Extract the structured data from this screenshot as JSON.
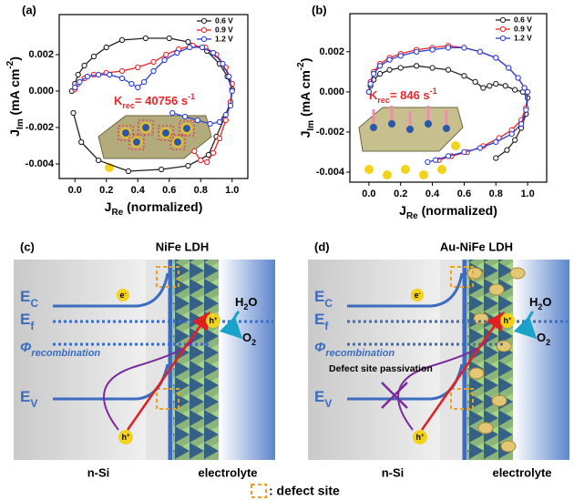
{
  "chart_data": [
    {
      "type": "line",
      "panel": "(a)",
      "xlabel": [
        "J",
        "Re",
        " (normalized)"
      ],
      "ylabel": [
        "J",
        "Im",
        " (mA cm",
        "-2",
        ")"
      ],
      "annotation": [
        "K",
        "rec",
        "= 40756 s",
        "-1"
      ],
      "xlim": [
        -0.1,
        1.1
      ],
      "ylim": [
        -0.0048,
        0.0042
      ],
      "xticks": [
        {
          "value": 0,
          "label": "0.0"
        },
        0.2,
        0.4,
        0.6,
        0.8,
        {
          "value": 1,
          "label": "1.0"
        }
      ],
      "yticks": [
        -0.004,
        -0.002,
        {
          "value": 0,
          "label": "0.000"
        },
        0.002
      ],
      "legend": "upper right",
      "series": [
        {
          "name": "0.6 V",
          "color": "#222222",
          "x": [
            -0.02,
            0.0,
            0.02,
            0.06,
            0.12,
            0.2,
            0.3,
            0.45,
            0.6,
            0.72,
            0.84,
            0.92,
            0.97,
            1.0,
            0.99,
            0.95,
            0.9,
            0.85,
            0.72,
            0.55,
            0.34,
            0.15,
            0.04,
            -0.01
          ],
          "values": [
            0.0,
            0.0004,
            0.0009,
            0.0014,
            0.0019,
            0.0024,
            0.0028,
            0.0029,
            0.0029,
            0.0027,
            0.0022,
            0.0015,
            0.0008,
            0.0001,
            -0.0006,
            -0.0015,
            -0.0025,
            -0.0035,
            -0.0041,
            -0.0043,
            -0.0044,
            -0.0038,
            -0.0028,
            -0.0012
          ]
        },
        {
          "name": "0.9 V",
          "color": "#e8262a",
          "x": [
            0.0,
            0.02,
            0.06,
            0.12,
            0.2,
            0.3,
            0.4,
            0.5,
            0.58,
            0.66,
            0.75,
            0.83,
            0.9,
            0.96,
            1.0,
            0.99,
            0.96,
            0.92,
            0.88,
            0.84,
            0.8,
            0.76
          ],
          "values": [
            0.0001,
            0.0004,
            0.0007,
            0.0009,
            0.001,
            0.0011,
            0.0013,
            0.0016,
            0.002,
            0.0023,
            0.0025,
            0.0024,
            0.002,
            0.0013,
            0.0004,
            -0.0006,
            -0.0016,
            -0.0026,
            -0.0034,
            -0.0039,
            -0.0038,
            -0.0033
          ]
        },
        {
          "name": "1.2 V",
          "color": "#2b3fd6",
          "x": [
            0.0,
            0.03,
            0.08,
            0.15,
            0.22,
            0.3,
            0.36,
            0.4,
            0.44,
            0.5,
            0.57,
            0.65,
            0.73,
            0.81,
            0.88,
            0.94,
            0.98,
            1.0,
            0.99,
            0.96,
            0.92,
            0.86,
            0.78,
            0.7,
            0.62
          ],
          "values": [
            0.0002,
            0.0005,
            0.0008,
            0.0009,
            0.0009,
            0.0007,
            0.0004,
            0.0002,
            0.0005,
            0.0011,
            0.0017,
            0.0021,
            0.0024,
            0.0024,
            0.0021,
            0.0015,
            0.0008,
            0.0,
            -0.0008,
            -0.0013,
            -0.0017,
            -0.0018,
            -0.0016,
            -0.0014,
            -0.0012
          ]
        }
      ]
    },
    {
      "type": "line",
      "panel": "(b)",
      "xlabel": [
        "J",
        "Re",
        " (normalized)"
      ],
      "ylabel": [
        "J",
        "Im",
        " (mA cm",
        "-2",
        ")"
      ],
      "annotation": [
        "K",
        "rec",
        "= 846 s",
        "-1"
      ],
      "xlim": [
        -0.12,
        1.12
      ],
      "ylim": [
        -0.0045,
        0.0039
      ],
      "xticks": [
        {
          "value": 0,
          "label": "0.0"
        },
        0.2,
        0.4,
        0.6,
        0.8,
        {
          "value": 1,
          "label": "1.0"
        }
      ],
      "yticks": [
        -0.004,
        -0.002,
        {
          "value": 0,
          "label": "0.000"
        },
        0.002
      ],
      "legend": "upper right",
      "series": [
        {
          "name": "0.6 V",
          "color": "#222222",
          "x": [
            0.0,
            0.01,
            0.03,
            0.07,
            0.13,
            0.2,
            0.3,
            0.4,
            0.5,
            0.6,
            0.67,
            0.72,
            0.76,
            0.8,
            0.86,
            0.92,
            0.97,
            1.0,
            0.99,
            0.96,
            0.92,
            0.87,
            0.8
          ],
          "values": [
            0.0,
            0.0003,
            0.0006,
            0.0009,
            0.0011,
            0.0012,
            0.0013,
            0.0012,
            0.0011,
            0.0008,
            0.0005,
            0.0002,
            0.0003,
            0.0004,
            0.0003,
            0.0001,
            0.0,
            -0.0003,
            -0.0011,
            -0.0018,
            -0.0024,
            -0.0029,
            -0.0033
          ]
        },
        {
          "name": "0.9 V",
          "color": "#e8262a",
          "x": [
            0.0,
            0.01,
            0.03,
            0.07,
            0.13,
            0.2,
            0.3,
            0.4,
            0.5,
            0.6,
            0.7,
            0.8,
            0.88,
            0.94,
            0.98,
            1.0,
            0.99,
            0.96,
            0.9,
            0.82,
            0.72,
            0.62,
            0.52,
            0.44
          ],
          "values": [
            0.0,
            0.0005,
            0.001,
            0.0014,
            0.0017,
            0.0019,
            0.0021,
            0.0022,
            0.0023,
            0.0022,
            0.002,
            0.0017,
            0.0012,
            0.0007,
            0.0002,
            0.0,
            -0.0008,
            -0.0014,
            -0.0019,
            -0.0023,
            -0.0027,
            -0.003,
            -0.0032,
            -0.0034
          ]
        },
        {
          "name": "1.2 V",
          "color": "#2b3fd6",
          "x": [
            0.0,
            0.01,
            0.03,
            0.07,
            0.13,
            0.2,
            0.3,
            0.4,
            0.5,
            0.6,
            0.7,
            0.8,
            0.88,
            0.94,
            0.98,
            1.0,
            0.99,
            0.96,
            0.9,
            0.8,
            0.7,
            0.6,
            0.5,
            0.42,
            0.37
          ],
          "values": [
            0.0,
            0.0004,
            0.0009,
            0.0013,
            0.0016,
            0.0018,
            0.002,
            0.0021,
            0.0022,
            0.0022,
            0.002,
            0.0017,
            0.0012,
            0.0007,
            0.0002,
            0.0,
            -0.0009,
            -0.0016,
            -0.0021,
            -0.0025,
            -0.0028,
            -0.003,
            -0.0032,
            -0.0034,
            -0.0035
          ]
        }
      ]
    }
  ],
  "diagrams": [
    {
      "label": "(c)",
      "title": "NiFe LDH",
      "conduction": [
        "E",
        "C"
      ],
      "fermi": [
        "E",
        "f"
      ],
      "recombination": [
        "Φ",
        "recombination"
      ],
      "valence": [
        "E",
        "V"
      ],
      "electron": [
        "e",
        "-"
      ],
      "hole_top": [
        "h",
        "+"
      ],
      "hole_bottom": [
        "h",
        "+"
      ],
      "water": [
        "H",
        "2",
        "O"
      ],
      "oxygen": [
        "O",
        "2"
      ],
      "left": "n-Si",
      "right": "electrolyte"
    },
    {
      "label": "(d)",
      "title": "Au-NiFe LDH",
      "conduction": [
        "E",
        "C"
      ],
      "fermi": [
        "E",
        "f"
      ],
      "recombination": [
        "Φ",
        "recombination"
      ],
      "valence": [
        "E",
        "V"
      ],
      "electron": [
        "e",
        "-"
      ],
      "hole_top": [
        "h",
        "+"
      ],
      "hole_bottom": [
        "h",
        "+"
      ],
      "water": [
        "H",
        "2",
        "O"
      ],
      "oxygen": [
        "O",
        "2"
      ],
      "left": "n-Si",
      "right": "electrolyte",
      "passivation": "Defect site passivation"
    }
  ],
  "legend": ": defect site"
}
